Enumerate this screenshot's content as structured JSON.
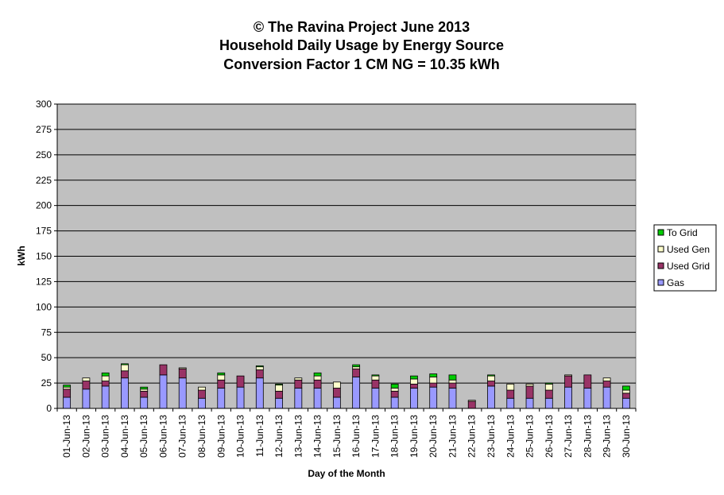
{
  "chart_data": {
    "type": "bar",
    "stacked": true,
    "title": [
      "© The Ravina Project June 2013",
      "Household Daily Usage by Energy Source",
      "Conversion Factor 1 CM NG = 10.35 kWh"
    ],
    "xlabel": "Day of the Month",
    "ylabel": "kWh",
    "ylim": [
      0,
      300
    ],
    "yticks": [
      0,
      25,
      50,
      75,
      100,
      125,
      150,
      175,
      200,
      225,
      250,
      275,
      300
    ],
    "grid": true,
    "legend_position": "right",
    "categories": [
      "01-Jun-13",
      "02-Jun-13",
      "03-Jun-13",
      "04-Jun-13",
      "05-Jun-13",
      "06-Jun-13",
      "07-Jun-13",
      "08-Jun-13",
      "09-Jun-13",
      "10-Jun-13",
      "11-Jun-13",
      "12-Jun-13",
      "13-Jun-13",
      "14-Jun-13",
      "15-Jun-13",
      "16-Jun-13",
      "17-Jun-13",
      "18-Jun-13",
      "19-Jun-13",
      "20-Jun-13",
      "21-Jun-13",
      "22-Jun-13",
      "23-Jun-13",
      "24-Jun-13",
      "25-Jun-13",
      "26-Jun-13",
      "27-Jun-13",
      "28-Jun-13",
      "29-Jun-13",
      "30-Jun-13"
    ],
    "series": [
      {
        "name": "Gas",
        "color": "#9999FF",
        "values": [
          11,
          19,
          22,
          30,
          11,
          33,
          30,
          10,
          20,
          21,
          30,
          10,
          20,
          20,
          11,
          31,
          20,
          11,
          20,
          21,
          20,
          0,
          22,
          10,
          10,
          10,
          21,
          20,
          21,
          10
        ]
      },
      {
        "name": "Used Grid",
        "color": "#993366",
        "values": [
          8,
          8,
          5,
          7,
          6,
          10,
          9,
          8,
          8,
          11,
          8,
          7,
          8,
          8,
          9,
          8,
          8,
          6,
          4,
          4,
          5,
          7,
          5,
          8,
          12,
          8,
          11,
          13,
          6,
          5
        ]
      },
      {
        "name": "Used Gen",
        "color": "#FFFFCC",
        "values": [
          2,
          3,
          5,
          6,
          2,
          0,
          1,
          3,
          5,
          0,
          3,
          6,
          2,
          4,
          6,
          2,
          4,
          3,
          5,
          6,
          3,
          1,
          5,
          6,
          2,
          6,
          1,
          0,
          3,
          3
        ]
      },
      {
        "name": "To Grid",
        "color": "#00CC00",
        "values": [
          2,
          0,
          3,
          1,
          2,
          0,
          0,
          0,
          2,
          0,
          1,
          1,
          0,
          3,
          0,
          2,
          1,
          4,
          3,
          3,
          5,
          0,
          1,
          0,
          0,
          1,
          0,
          0,
          0,
          4
        ]
      }
    ],
    "legend_order": [
      "To Grid",
      "Used Gen",
      "Used Grid",
      "Gas"
    ],
    "colors": {
      "plot_background": "#C0C0C0",
      "gridline": "#000000",
      "bar_outline": "#000000"
    }
  }
}
